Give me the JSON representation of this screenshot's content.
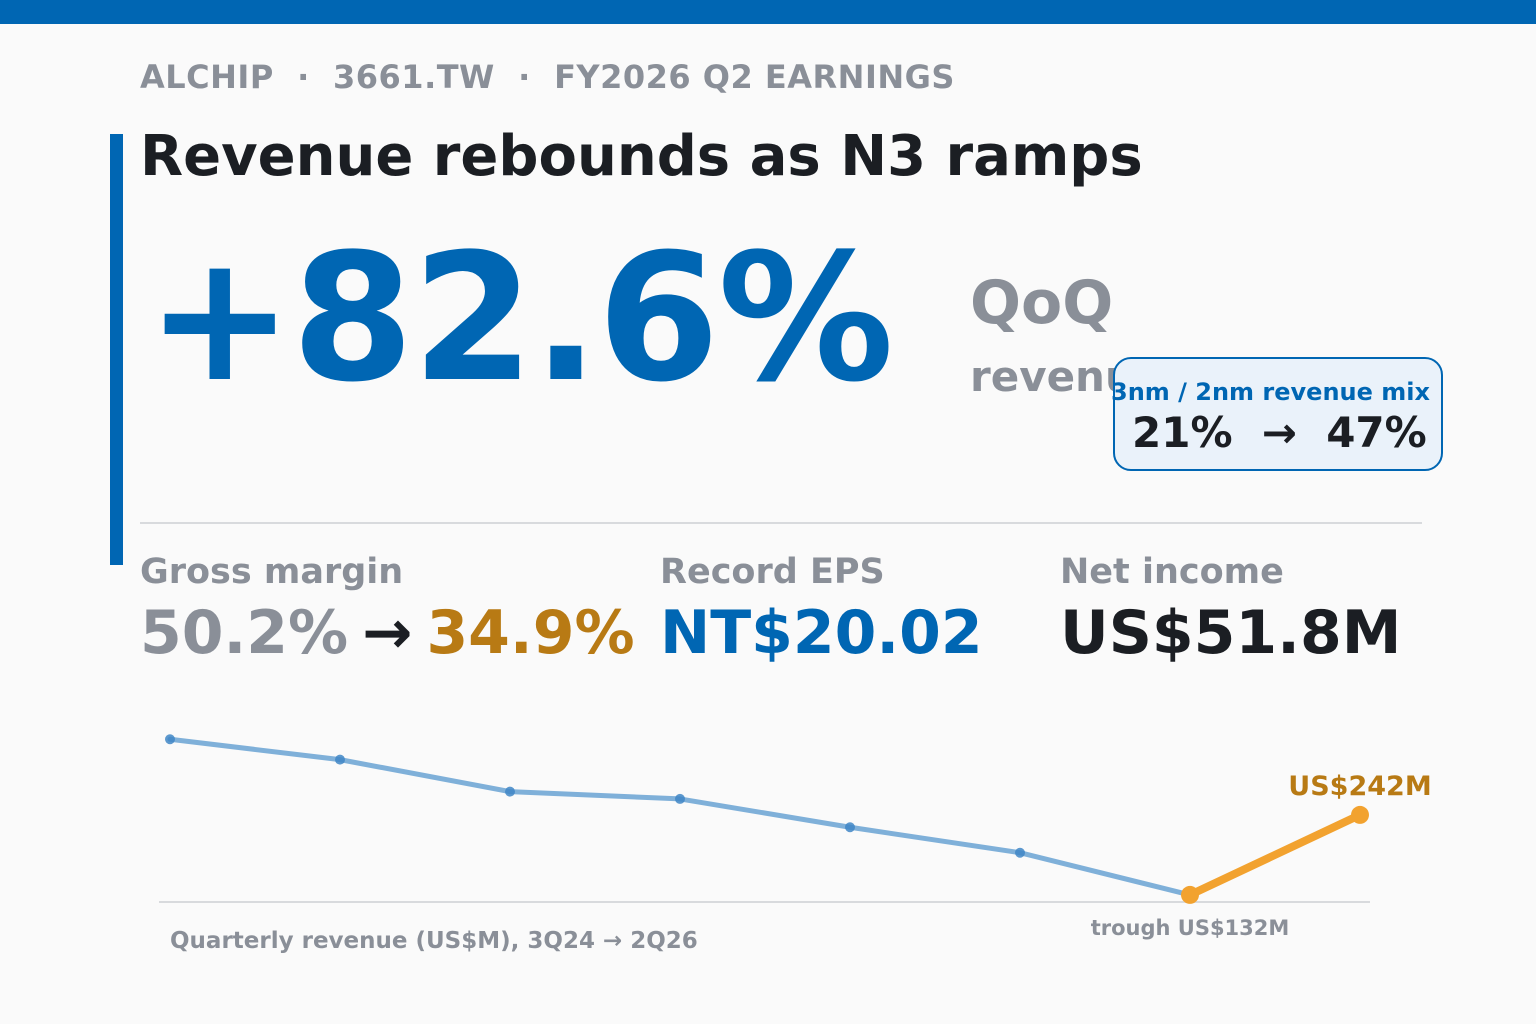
{
  "header": {
    "kicker": "ALCHIP  ·  3661.TW  ·  FY2026 Q2 EARNINGS",
    "headline": "Revenue rebounds as N3 ramps"
  },
  "hero": {
    "value": "+82.6%",
    "unit": "QoQ",
    "sub": "revenue"
  },
  "mix_callout": {
    "label": "3nm / 2nm revenue mix",
    "values": "21%  →  47%"
  },
  "stats": {
    "gross_margin": {
      "label": "Gross margin",
      "from": "50.2%",
      "arrow": "→",
      "to": "34.9%"
    },
    "eps": {
      "label": "Record EPS",
      "value": "NT$20.02"
    },
    "net_income": {
      "label": "Net income",
      "value": "US$51.8M"
    }
  },
  "colors": {
    "brand": "#0066b3",
    "history_line": "#7fb0d9",
    "highlight": "#f2a22f",
    "highlight_text": "#b87a14",
    "muted": "#8a8f98",
    "ink": "#1b1e23"
  },
  "chart_data": {
    "type": "line",
    "caption": "Quarterly revenue (US$M), 3Q24 → 2Q26",
    "x_start": "3Q24",
    "x_end": "2Q26",
    "values": [
      346,
      318,
      274,
      264,
      225,
      190,
      132,
      242
    ],
    "y_range": [
      125,
      400
    ],
    "trough_index": 6,
    "latest_index": 7,
    "annotations": {
      "latest_label": "US$242M",
      "trough_label": "trough US$132M"
    },
    "grid": false,
    "legend": "none"
  }
}
